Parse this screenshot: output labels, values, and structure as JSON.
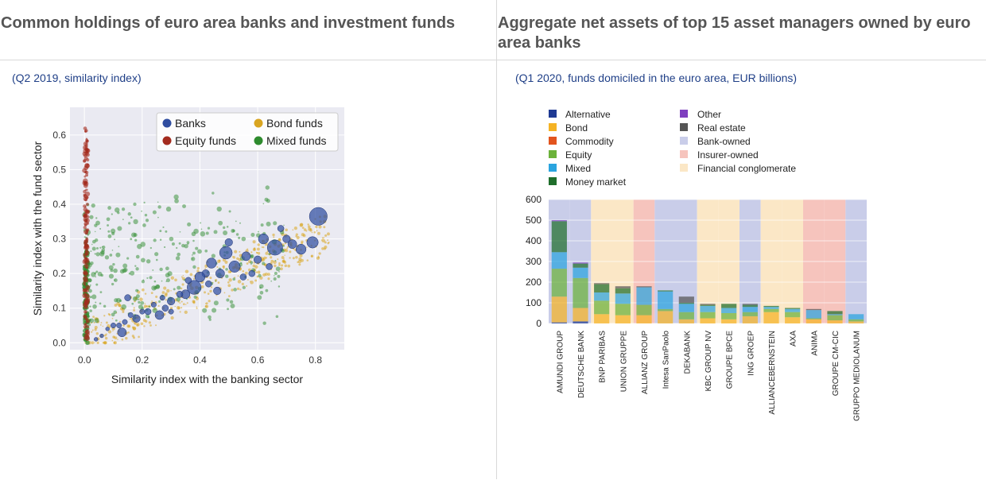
{
  "left": {
    "title": "Common holdings of euro area banks and investment funds",
    "subtitle": "(Q2 2019, similarity index)"
  },
  "right": {
    "title": "Aggregate net assets of top 15 asset managers owned by euro area banks",
    "subtitle": "(Q1 2020, funds domiciled in the euro area, EUR billions)"
  },
  "colors": {
    "banks": "#2f4da0",
    "bond_funds": "#d9a521",
    "equity_funds": "#a32b1e",
    "mixed_funds": "#2e8b2e",
    "alternative": "#1f3a93",
    "bond": "#f5b324",
    "commodity": "#e2541e",
    "equity": "#6bb23a",
    "mixed": "#2aa4df",
    "money_market": "#1f6e2b",
    "other": "#7f3fbf",
    "real_estate": "#555555",
    "bank_owned": "#c9cde9",
    "insurer_owned": "#f6c4bd",
    "financial_conglomerate": "#fbe7c6"
  },
  "chart_data": [
    {
      "type": "scatter",
      "title": "",
      "xlabel": "Similarity index with the banking sector",
      "ylabel": "Similarity index with the fund sector",
      "xlim": [
        -0.05,
        0.9
      ],
      "ylim": [
        -0.02,
        0.68
      ],
      "xticks": [
        0.0,
        0.2,
        0.4,
        0.6,
        0.8
      ],
      "xtick_labels": [
        "0.0",
        "0.2",
        "0.4",
        "0.6",
        "0.8"
      ],
      "yticks": [
        0.0,
        0.1,
        0.2,
        0.3,
        0.4,
        0.5,
        0.6
      ],
      "ytick_labels": [
        "0.0",
        "0.1",
        "0.2",
        "0.3",
        "0.4",
        "0.5",
        "0.6"
      ],
      "grid": true,
      "legend_position": "top-right",
      "series": [
        {
          "name": "Banks",
          "points": [
            [
              0.81,
              0.365,
              14
            ],
            [
              0.79,
              0.29,
              9
            ],
            [
              0.75,
              0.27,
              8
            ],
            [
              0.72,
              0.285,
              7
            ],
            [
              0.66,
              0.275,
              12
            ],
            [
              0.62,
              0.3,
              8
            ],
            [
              0.6,
              0.24,
              6
            ],
            [
              0.56,
              0.25,
              7
            ],
            [
              0.52,
              0.22,
              9
            ],
            [
              0.49,
              0.26,
              10
            ],
            [
              0.47,
              0.2,
              7
            ],
            [
              0.44,
              0.23,
              8
            ],
            [
              0.42,
              0.2,
              6
            ],
            [
              0.4,
              0.19,
              8
            ],
            [
              0.38,
              0.16,
              11
            ],
            [
              0.35,
              0.14,
              7
            ],
            [
              0.33,
              0.14,
              5
            ],
            [
              0.3,
              0.12,
              6
            ],
            [
              0.28,
              0.1,
              5
            ],
            [
              0.26,
              0.08,
              7
            ],
            [
              0.24,
              0.11,
              4
            ],
            [
              0.22,
              0.09,
              5
            ],
            [
              0.2,
              0.09,
              4
            ],
            [
              0.18,
              0.07,
              6
            ],
            [
              0.16,
              0.08,
              4
            ],
            [
              0.15,
              0.13,
              5
            ],
            [
              0.14,
              0.06,
              4
            ],
            [
              0.13,
              0.03,
              7
            ],
            [
              0.12,
              0.05,
              4
            ],
            [
              0.1,
              0.05,
              4
            ],
            [
              0.08,
              0.04,
              3
            ],
            [
              0.06,
              0.02,
              3
            ],
            [
              0.04,
              0.01,
              3
            ],
            [
              0.55,
              0.19,
              5
            ],
            [
              0.68,
              0.33,
              5
            ],
            [
              0.7,
              0.3,
              6
            ],
            [
              0.64,
              0.22,
              5
            ],
            [
              0.58,
              0.2,
              5
            ],
            [
              0.46,
              0.15,
              6
            ],
            [
              0.36,
              0.18,
              5
            ],
            [
              0.3,
              0.09,
              4
            ],
            [
              0.43,
              0.17,
              5
            ],
            [
              0.5,
              0.29,
              6
            ],
            [
              0.27,
              0.13,
              4
            ]
          ]
        },
        {
          "name": "Bond funds"
        },
        {
          "name": "Equity funds"
        },
        {
          "name": "Mixed funds"
        }
      ]
    },
    {
      "type": "bar",
      "stacked": true,
      "title": "",
      "ylim": [
        0,
        600
      ],
      "yticks": [
        0,
        100,
        200,
        300,
        400,
        500,
        600
      ],
      "categories": [
        "AMUNDI GROUP",
        "DEUTSCHE BANK",
        "BNP PARIBAS",
        "UNION GRUPPE",
        "ALLIANZ GROUP",
        "Intesa SanPaolo",
        "DEKABANK",
        "KBC GROUP NV",
        "GROUPE BPCE",
        "ING GROEP",
        "ALLIANCEBERNSTEIN",
        "AXA",
        "ANIMA",
        "GROUPE CM-CIC",
        "GRUPPO MEDIOLANUM"
      ],
      "ownership": [
        "bank",
        "bank",
        "conglomerate",
        "conglomerate",
        "insurer",
        "bank",
        "bank",
        "conglomerate",
        "conglomerate",
        "bank",
        "conglomerate",
        "conglomerate",
        "insurer",
        "insurer",
        "bank"
      ],
      "ownership_legend": [
        {
          "key": "bank",
          "name": "Bank-owned",
          "color": "#c9cde9"
        },
        {
          "key": "insurer",
          "name": "Insurer-owned",
          "color": "#f6c4bd"
        },
        {
          "key": "conglomerate",
          "name": "Financial conglomerate",
          "color": "#fbe7c6"
        }
      ],
      "series": [
        {
          "name": "Alternative",
          "color": "#1f3a93",
          "values": [
            5,
            10,
            0,
            0,
            0,
            0,
            0,
            0,
            0,
            0,
            0,
            0,
            0,
            0,
            0
          ]
        },
        {
          "name": "Bond",
          "color": "#f5b324",
          "values": [
            125,
            65,
            45,
            40,
            40,
            60,
            20,
            25,
            20,
            35,
            55,
            30,
            20,
            15,
            10
          ]
        },
        {
          "name": "Commodity",
          "color": "#e2541e",
          "values": [
            0,
            0,
            0,
            0,
            0,
            0,
            0,
            0,
            0,
            0,
            0,
            0,
            0,
            0,
            0
          ]
        },
        {
          "name": "Equity",
          "color": "#6bb23a",
          "values": [
            135,
            145,
            65,
            55,
            50,
            10,
            35,
            30,
            30,
            20,
            15,
            25,
            5,
            25,
            10
          ]
        },
        {
          "name": "Mixed",
          "color": "#2aa4df",
          "values": [
            80,
            50,
            40,
            50,
            85,
            85,
            40,
            30,
            25,
            25,
            10,
            15,
            40,
            5,
            25
          ]
        },
        {
          "name": "Money market",
          "color": "#1f6e2b",
          "values": [
            150,
            20,
            40,
            25,
            0,
            5,
            5,
            5,
            20,
            10,
            5,
            5,
            0,
            15,
            0
          ]
        },
        {
          "name": "Other",
          "color": "#7f3fbf",
          "values": [
            5,
            5,
            0,
            0,
            0,
            0,
            0,
            0,
            0,
            0,
            0,
            0,
            0,
            0,
            0
          ]
        },
        {
          "name": "Real estate",
          "color": "#555555",
          "values": [
            0,
            0,
            5,
            10,
            5,
            0,
            30,
            5,
            0,
            5,
            0,
            0,
            5,
            0,
            0
          ]
        }
      ]
    }
  ]
}
